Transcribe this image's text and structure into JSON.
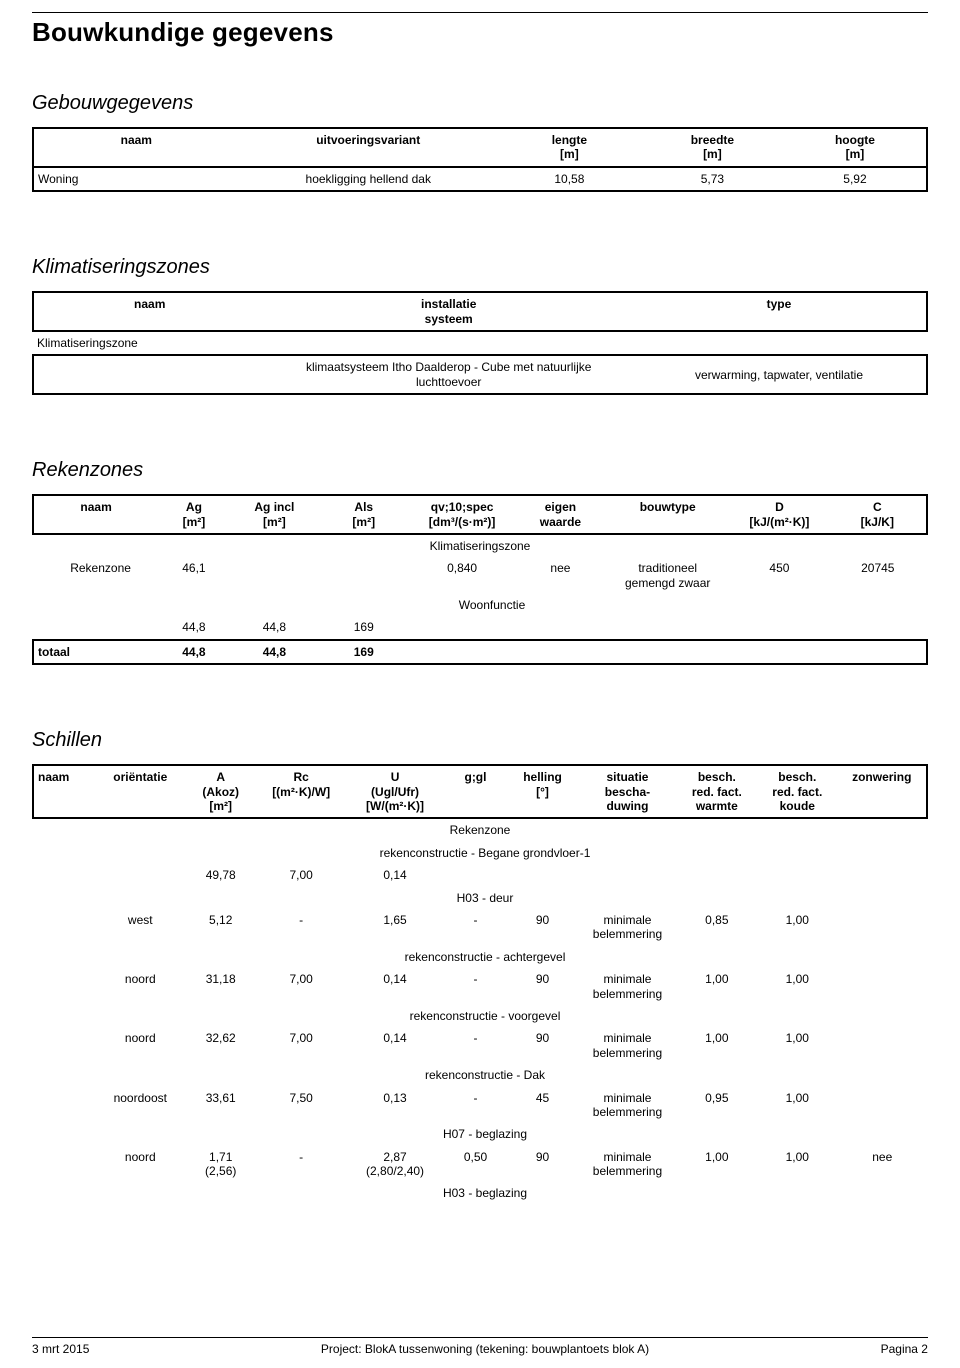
{
  "page": {
    "title": "Bouwkundige gegevens",
    "footer_date": "3 mrt 2015",
    "footer_project": "Project: BlokA tussenwoning (tekening: bouwplantoets blok A)",
    "footer_page": "Pagina 2"
  },
  "gebouw": {
    "heading": "Gebouwgegevens",
    "columns": [
      "naam",
      "uitvoeringsvariant",
      "lengte\n[m]",
      "breedte\n[m]",
      "hoogte\n[m]"
    ],
    "row": {
      "naam": "Woning",
      "uitv": "hoekligging hellend dak",
      "lengte": "10,58",
      "breedte": "5,73",
      "hoogte": "5,92"
    }
  },
  "klimaat": {
    "heading": "Klimatiseringszones",
    "columns": [
      "naam",
      "installatie\nsysteem",
      "type"
    ],
    "row_label": "Klimatiseringszone",
    "systeem": "klimaatsysteem Itho Daalderop - Cube met natuurlijke\nluchttoevoer",
    "type": "verwarming, tapwater, ventilatie"
  },
  "rekenzones": {
    "heading": "Rekenzones",
    "columns": [
      "naam",
      "Ag\n[m²]",
      "Ag incl\n[m²]",
      "Als\n[m²]",
      "qv;10;spec\n[dm³/(s·m²)]",
      "eigen\nwaarde",
      "bouwtype",
      "D\n[kJ/(m²·K)]",
      "C\n[kJ/K]"
    ],
    "group_label": "Klimatiseringszone",
    "rz_row": {
      "naam": "Rekenzone",
      "ag": "46,1",
      "qv": "0,840",
      "eigen": "nee",
      "bouwtype": "traditioneel\ngemengd zwaar",
      "d": "450",
      "c": "20745"
    },
    "woon_label": "Woonfunctie",
    "woon_row": {
      "ag": "44,8",
      "agincl": "44,8",
      "als": "169"
    },
    "totaal_label": "totaal",
    "totaal_row": {
      "ag": "44,8",
      "agincl": "44,8",
      "als": "169"
    }
  },
  "schillen": {
    "heading": "Schillen",
    "columns": [
      "naam",
      "oriëntatie",
      "A\n(Akoz)\n[m²]",
      "Rc\n[(m²·K)/W]",
      "U\n(Ugl/Ufr)\n[W/(m²·K)]",
      "g;gl",
      "helling\n[°]",
      "situatie\nbescha-\nduwing",
      "besch.\nred. fact.\nwarmte",
      "besch.\nred. fact.\nkoude",
      "zonwering"
    ],
    "group_label": "Rekenzone",
    "rows": [
      {
        "header": "rekenconstructie - Begane grondvloer-1"
      },
      {
        "a": "49,78",
        "rc": "7,00",
        "u": "0,14"
      },
      {
        "header": "H03 - deur"
      },
      {
        "orient": "west",
        "a": "5,12",
        "rc": "-",
        "u": "1,65",
        "g": "-",
        "helling": "90",
        "sit": "minimale\nbelemmering",
        "w": "0,85",
        "k": "1,00"
      },
      {
        "header": "rekenconstructie - achtergevel"
      },
      {
        "orient": "noord",
        "a": "31,18",
        "rc": "7,00",
        "u": "0,14",
        "g": "-",
        "helling": "90",
        "sit": "minimale\nbelemmering",
        "w": "1,00",
        "k": "1,00"
      },
      {
        "header": "rekenconstructie - voorgevel"
      },
      {
        "orient": "noord",
        "a": "32,62",
        "rc": "7,00",
        "u": "0,14",
        "g": "-",
        "helling": "90",
        "sit": "minimale\nbelemmering",
        "w": "1,00",
        "k": "1,00"
      },
      {
        "header": "rekenconstructie - Dak"
      },
      {
        "orient": "noordoost",
        "a": "33,61",
        "rc": "7,50",
        "u": "0,13",
        "g": "-",
        "helling": "45",
        "sit": "minimale\nbelemmering",
        "w": "0,95",
        "k": "1,00"
      },
      {
        "header": "H07 - beglazing"
      },
      {
        "orient": "noord",
        "a": "1,71\n(2,56)",
        "rc": "-",
        "u": "2,87\n(2,80/2,40)",
        "g": "0,50",
        "helling": "90",
        "sit": "minimale\nbelemmering",
        "w": "1,00",
        "k": "1,00",
        "zon": "nee"
      },
      {
        "header": "H03 - beglazing"
      }
    ]
  }
}
